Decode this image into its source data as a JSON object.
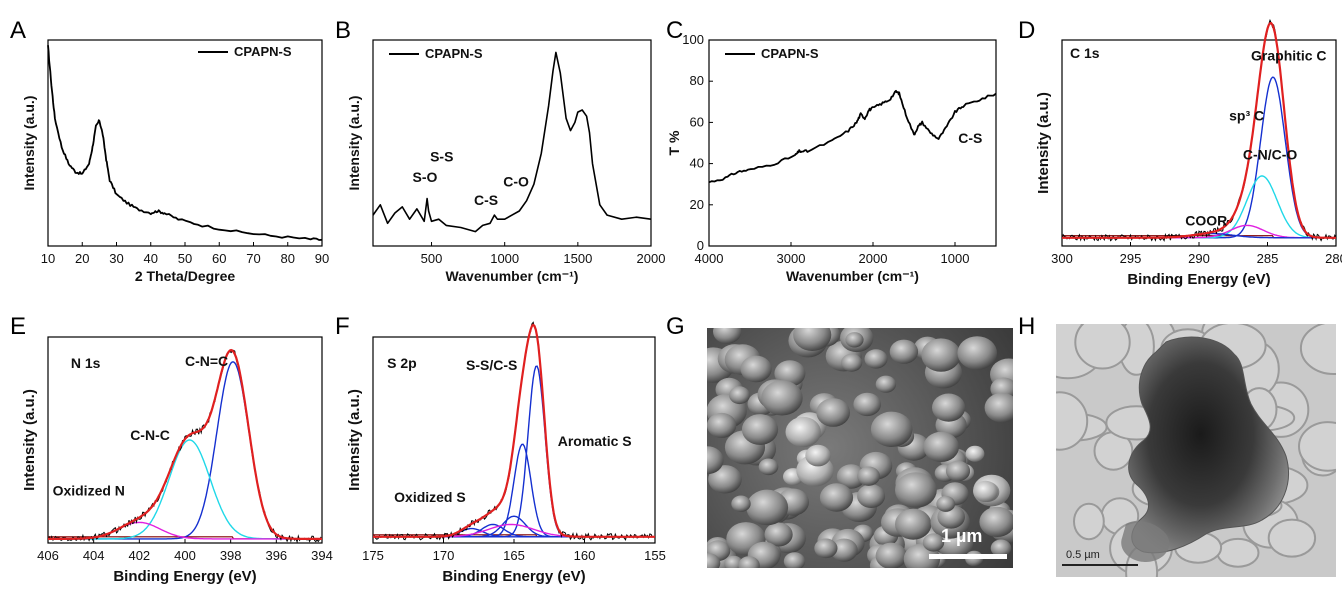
{
  "panel_labels": [
    "A",
    "B",
    "C",
    "D",
    "E",
    "F",
    "G",
    "H"
  ],
  "colors": {
    "data": "#000000",
    "envelope": "#e02020",
    "fit_blue": "#1530d0",
    "fit_cyan": "#20d8e8",
    "fit_magenta": "#e020e0",
    "baseline": "#800000",
    "scalebar": "#ffffff"
  },
  "chart_data": [
    {
      "panel": "A",
      "type": "line",
      "xlabel": "2 Theta/Degree",
      "ylabel": "Intensity (a.u.)",
      "xlim": [
        10,
        90
      ],
      "ylim": [
        0,
        1
      ],
      "xticks": [
        "10",
        "20",
        "30",
        "40",
        "50",
        "60",
        "70",
        "80",
        "90"
      ],
      "yticks": [],
      "legend": "CPAPN-S",
      "series": [
        {
          "name": "CPAPN-S",
          "color": "#000000",
          "noisy": true,
          "x": [
            10,
            11,
            12,
            14,
            16,
            18,
            20,
            22,
            23,
            24,
            25,
            26,
            27,
            28,
            30,
            33,
            36,
            40,
            42,
            44,
            48,
            55,
            65,
            75,
            85,
            90
          ],
          "y": [
            0.97,
            0.78,
            0.62,
            0.48,
            0.4,
            0.36,
            0.35,
            0.4,
            0.48,
            0.58,
            0.61,
            0.54,
            0.42,
            0.32,
            0.25,
            0.21,
            0.18,
            0.16,
            0.17,
            0.16,
            0.13,
            0.1,
            0.07,
            0.05,
            0.035,
            0.03
          ]
        }
      ],
      "annotations": []
    },
    {
      "panel": "B",
      "type": "line",
      "xlabel": "Wavenumber (cm⁻¹)",
      "ylabel": "Intensity (a.u.)",
      "xlim": [
        100,
        2000
      ],
      "ylim": [
        0,
        1
      ],
      "xticks": [
        "500",
        "1000",
        "1500",
        "2000"
      ],
      "yticks": [],
      "legend": "CPAPN-S",
      "series": [
        {
          "name": "CPAPN-S",
          "color": "#000000",
          "noisy": false,
          "x": [
            100,
            150,
            200,
            250,
            300,
            350,
            400,
            450,
            470,
            480,
            500,
            550,
            600,
            700,
            800,
            850,
            900,
            930,
            950,
            1000,
            1050,
            1100,
            1150,
            1200,
            1250,
            1300,
            1330,
            1350,
            1380,
            1420,
            1450,
            1480,
            1500,
            1530,
            1560,
            1580,
            1600,
            1650,
            1700,
            1800,
            1900,
            2000
          ],
          "y": [
            0.15,
            0.2,
            0.11,
            0.16,
            0.19,
            0.13,
            0.18,
            0.12,
            0.23,
            0.17,
            0.12,
            0.13,
            0.1,
            0.09,
            0.07,
            0.1,
            0.11,
            0.15,
            0.13,
            0.13,
            0.15,
            0.17,
            0.22,
            0.3,
            0.45,
            0.68,
            0.85,
            0.94,
            0.84,
            0.62,
            0.56,
            0.6,
            0.65,
            0.66,
            0.63,
            0.55,
            0.4,
            0.2,
            0.15,
            0.13,
            0.14,
            0.13
          ]
        }
      ],
      "annotations": [
        {
          "text": "S-O",
          "x": 370,
          "y": 0.31
        },
        {
          "text": "S-S",
          "x": 490,
          "y": 0.41
        },
        {
          "text": "C-S",
          "x": 790,
          "y": 0.2
        },
        {
          "text": "C-O",
          "x": 990,
          "y": 0.29
        }
      ]
    },
    {
      "panel": "C",
      "type": "line",
      "xlabel": "Wavenumber (cm⁻¹)",
      "ylabel": "T %",
      "xlim": [
        4000,
        500
      ],
      "ylim": [
        0,
        100
      ],
      "xticks": [
        "4000",
        "3000",
        "2000",
        "1000"
      ],
      "yticks": [
        "0",
        "20",
        "40",
        "60",
        "80",
        "100"
      ],
      "legend": "CPAPN-S",
      "series": [
        {
          "name": "CPAPN-S",
          "color": "#000000",
          "noisy": true,
          "x": [
            4000,
            3800,
            3650,
            3500,
            3200,
            2950,
            2900,
            2800,
            2500,
            2300,
            2200,
            2150,
            2100,
            2050,
            2000,
            1900,
            1800,
            1720,
            1680,
            1600,
            1500,
            1450,
            1400,
            1300,
            1200,
            1100,
            1000,
            900,
            700,
            500
          ],
          "y": [
            31,
            33,
            36,
            37,
            40,
            44,
            46,
            46,
            51,
            56,
            60,
            64,
            62,
            66,
            67,
            69,
            71,
            75,
            74,
            64,
            54,
            58,
            60,
            55,
            52,
            58,
            65,
            68,
            71,
            74
          ]
        }
      ],
      "annotations": [
        {
          "text": "C-S",
          "x": 960,
          "y": 50
        }
      ]
    },
    {
      "panel": "D",
      "type": "line",
      "title": "C 1s",
      "xlabel": "Binding Energy (eV)",
      "ylabel": "Intensity (a.u.)",
      "xlim": [
        300,
        280
      ],
      "ylim": [
        0,
        1
      ],
      "xticks": [
        "300",
        "295",
        "290",
        "285",
        "280"
      ],
      "yticks": [],
      "baseline": 0.04,
      "peaks": [
        {
          "center": 284.6,
          "height": 0.78,
          "width": 0.9,
          "color": "#1530d0"
        },
        {
          "center": 285.4,
          "height": 0.3,
          "width": 1.1,
          "color": "#20d8e8"
        },
        {
          "center": 286.5,
          "height": 0.06,
          "width": 1.2,
          "color": "#e020e0"
        },
        {
          "center": 289.0,
          "height": 0.02,
          "width": 1.5,
          "color": "#1530d0"
        }
      ],
      "annotations": [
        {
          "text": "Graphitic C",
          "x": 286.2,
          "y": 0.9
        },
        {
          "text": "sp³ C",
          "x": 287.8,
          "y": 0.61
        },
        {
          "text": "C-N/C-O",
          "x": 286.8,
          "y": 0.42
        },
        {
          "text": "COOR",
          "x": 291.0,
          "y": 0.1
        }
      ]
    },
    {
      "panel": "E",
      "type": "line",
      "title": "N 1s",
      "xlabel": "Binding Energy (eV)",
      "ylabel": "Intensity (a.u.)",
      "xlim": [
        406,
        394
      ],
      "ylim": [
        0,
        1
      ],
      "xticks": [
        "406",
        "404",
        "402",
        "400",
        "398",
        "396",
        "394"
      ],
      "yticks": [],
      "baseline": 0.02,
      "peaks": [
        {
          "center": 397.9,
          "height": 0.86,
          "width": 0.7,
          "color": "#1530d0"
        },
        {
          "center": 399.8,
          "height": 0.48,
          "width": 0.9,
          "color": "#20d8e8"
        },
        {
          "center": 402.0,
          "height": 0.08,
          "width": 0.9,
          "color": "#e020e0"
        }
      ],
      "annotations": [
        {
          "text": "N 1s",
          "x": 405.0,
          "y": 0.85
        },
        {
          "text": "C-N=C",
          "x": 400.0,
          "y": 0.86
        },
        {
          "text": "C-N-C",
          "x": 402.4,
          "y": 0.5
        },
        {
          "text": "Oxidized N",
          "x": 405.8,
          "y": 0.23
        }
      ]
    },
    {
      "panel": "F",
      "type": "line",
      "title": "S 2p",
      "xlabel": "Binding Energy (eV)",
      "ylabel": "Intensity (a.u.)",
      "xlim": [
        175,
        155
      ],
      "ylim": [
        0,
        1
      ],
      "xticks": [
        "175",
        "170",
        "165",
        "160",
        "155"
      ],
      "yticks": [],
      "baseline": 0.03,
      "peaks": [
        {
          "center": 163.4,
          "height": 0.83,
          "width": 0.6,
          "color": "#1530d0"
        },
        {
          "center": 164.4,
          "height": 0.45,
          "width": 0.6,
          "color": "#1530d0"
        },
        {
          "center": 165.0,
          "height": 0.1,
          "width": 0.8,
          "color": "#1530d0"
        },
        {
          "center": 166.5,
          "height": 0.06,
          "width": 0.8,
          "color": "#1530d0"
        },
        {
          "center": 168.0,
          "height": 0.04,
          "width": 0.8,
          "color": "#1530d0"
        },
        {
          "center": 165.2,
          "height": 0.06,
          "width": 1.6,
          "color": "#e020e0"
        }
      ],
      "annotations": [
        {
          "text": "S 2p",
          "x": 174.0,
          "y": 0.85
        },
        {
          "text": "S-S/C-S",
          "x": 168.4,
          "y": 0.84
        },
        {
          "text": "Aromatic S",
          "x": 161.9,
          "y": 0.47
        },
        {
          "text": "Oxidized S",
          "x": 173.5,
          "y": 0.2
        }
      ]
    }
  ],
  "images": {
    "G": {
      "kind": "sem",
      "scalebar_label": "1 µm"
    },
    "H": {
      "kind": "tem",
      "scalebar_label": "0.5 µm"
    }
  }
}
